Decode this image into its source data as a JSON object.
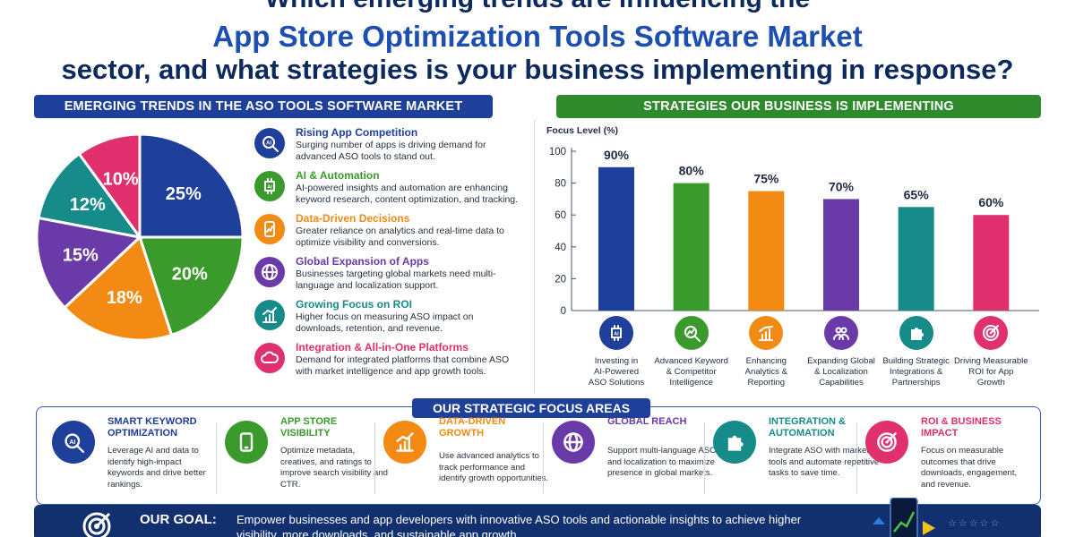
{
  "title": {
    "line1": "Which emerging trends are influencing the",
    "line2": "App Store Optimization Tools Software Market",
    "line3": "sector, and what strategies is your business implementing in response?"
  },
  "left_section": {
    "banner": "EMERGING TRENDS IN THE ASO TOOLS SOFTWARE MARKET",
    "trends": [
      {
        "title": "Rising App Competition",
        "desc": "Surging number of apps is driving demand for advanced ASO tools to stand out.",
        "color": "#1e3f9a",
        "icon": "ai-search-icon"
      },
      {
        "title": "AI & Automation",
        "desc": "AI-powered insights and automation are enhancing keyword research, content optimization, and tracking.",
        "color": "#3a9a2c",
        "icon": "ai-chip-icon"
      },
      {
        "title": "Data-Driven Decisions",
        "desc": "Greater reliance on analytics and real-time data to optimize visibility and conversions.",
        "color": "#f28a14",
        "icon": "mobile-chart-icon"
      },
      {
        "title": "Global Expansion of Apps",
        "desc": "Businesses targeting global markets need multi-language and localization support.",
        "color": "#6a3aa8",
        "icon": "globe-icon"
      },
      {
        "title": "Growing Focus on ROI",
        "desc": "Higher focus on measuring ASO impact on downloads, retention, and revenue.",
        "color": "#178a8a",
        "icon": "growth-chart-icon"
      },
      {
        "title": "Integration & All-in-One Platforms",
        "desc": "Demand for integrated platforms that combine ASO with market intelligence and app growth tools.",
        "color": "#e0306e",
        "icon": "cloud-icon"
      }
    ]
  },
  "right_section": {
    "banner": "STRATEGIES OUR BUSINESS IS IMPLEMENTING"
  },
  "chart_data": [
    {
      "type": "pie",
      "values": [
        25,
        20,
        18,
        15,
        12,
        10
      ],
      "labels": [
        "25%",
        "20%",
        "18%",
        "15%",
        "12%",
        "10%"
      ],
      "colors": [
        "#1e3f9a",
        "#3a9a2c",
        "#f28a14",
        "#6a3aa8",
        "#178a8a",
        "#e0306e"
      ]
    },
    {
      "type": "bar",
      "ylabel": "Focus Level (%)",
      "ylim": [
        0,
        100
      ],
      "yticks": [
        0,
        20,
        40,
        60,
        80,
        100
      ],
      "categories": [
        "Investing in AI-Powered ASO Solutions",
        "Advanced Keyword & Competitor Intelligence",
        "Enhancing Analytics & Reporting",
        "Expanding Global & Localization Capabilities",
        "Building Strategic Integrations & Partnerships",
        "Driving Measurable ROI for App Growth"
      ],
      "category_lines": [
        [
          "Investing in",
          "AI-Powered",
          "ASO Solutions"
        ],
        [
          "Advanced Keyword",
          "& Competitor",
          "Intelligence"
        ],
        [
          "Enhancing",
          "Analytics &",
          "Reporting"
        ],
        [
          "Expanding Global",
          "& Localization",
          "Capabilities"
        ],
        [
          "Building Strategic",
          "Integrations &",
          "Partnerships"
        ],
        [
          "Driving Measurable",
          "ROI for App",
          "Growth"
        ]
      ],
      "values": [
        90,
        80,
        75,
        70,
        65,
        60
      ],
      "value_labels": [
        "90%",
        "80%",
        "75%",
        "70%",
        "65%",
        "60%"
      ],
      "colors": [
        "#1e3f9a",
        "#3a9a2c",
        "#f28a14",
        "#6a3aa8",
        "#178a8a",
        "#e0306e"
      ],
      "icons": [
        "ai-chip-icon",
        "keyword-search-icon",
        "analytics-chart-icon",
        "team-icon",
        "puzzle-icon",
        "target-icon"
      ]
    }
  ],
  "focus": {
    "title": "OUR STRATEGIC FOCUS AREAS",
    "items": [
      {
        "title": "SMART KEYWORD OPTIMIZATION",
        "desc": "Leverage AI and data to identify high-impact keywords and drive better rankings.",
        "color": "#1e3f9a",
        "icon": "ai-search-icon"
      },
      {
        "title": "APP STORE VISIBILITY",
        "desc": "Optimize metadata, creatives, and ratings to improve search visibility and CTR.",
        "color": "#3a9a2c",
        "icon": "smartphone-icon"
      },
      {
        "title": "DATA-DRIVEN GROWTH",
        "desc": "Use advanced analytics to track performance and identify growth opportunities.",
        "color": "#f28a14",
        "icon": "growth-chart-icon"
      },
      {
        "title": "GLOBAL REACH",
        "desc": "Support multi-language ASO and localization to maximize presence in global markets.",
        "color": "#6a3aa8",
        "icon": "globe-icon"
      },
      {
        "title": "INTEGRATION & AUTOMATION",
        "desc": "Integrate ASO with marketing tools and automate repetitive tasks to save time.",
        "color": "#178a8a",
        "icon": "puzzle-icon"
      },
      {
        "title": "ROI & BUSINESS IMPACT",
        "desc": "Focus on measurable outcomes that drive downloads, engagement, and revenue.",
        "color": "#e0306e",
        "icon": "target-icon"
      }
    ]
  },
  "goal": {
    "label": "OUR GOAL:",
    "text": "Empower businesses and app developers with innovative ASO tools and actionable insights to achieve higher visibility, more downloads, and sustainable app growth.",
    "stars": "☆☆☆☆☆"
  }
}
